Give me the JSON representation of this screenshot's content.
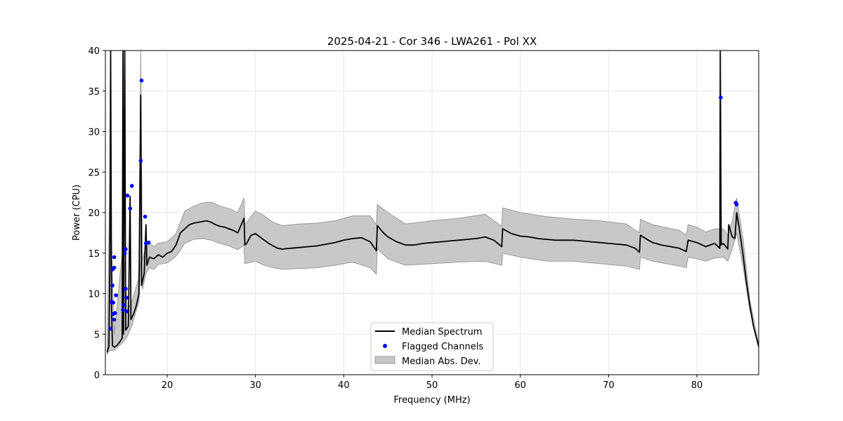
{
  "chart_data": {
    "type": "line",
    "title": "2025-04-21 - Cor 346 - LWA261 - Pol XX",
    "xlabel": "Frequency (MHz)",
    "ylabel": "Power (CPU)",
    "xlim": [
      13,
      87
    ],
    "ylim": [
      0,
      40
    ],
    "xticks": [
      20,
      30,
      40,
      50,
      60,
      70,
      80
    ],
    "yticks": [
      0,
      5,
      10,
      15,
      20,
      25,
      30,
      35,
      40
    ],
    "grid": true,
    "legend_position": "bottom-center",
    "colors": {
      "median": "#000000",
      "flagged": "#0000ff",
      "band_fill": "#c8c8c8",
      "band_edge": "#9a9a9a",
      "grid": "#e6e6e6"
    },
    "series": [
      {
        "name": "Median Spectrum",
        "style": "line",
        "points": [
          [
            13.2,
            2.8
          ],
          [
            13.4,
            3.5
          ],
          [
            13.5,
            13.0
          ],
          [
            13.6,
            40.0
          ],
          [
            13.7,
            8.0
          ],
          [
            13.8,
            3.6
          ],
          [
            14.0,
            3.4
          ],
          [
            14.3,
            3.6
          ],
          [
            14.6,
            4.0
          ],
          [
            14.9,
            4.5
          ],
          [
            15.0,
            40.0
          ],
          [
            15.05,
            5.0
          ],
          [
            15.2,
            40.0
          ],
          [
            15.3,
            5.5
          ],
          [
            15.6,
            6.0
          ],
          [
            15.8,
            22.0
          ],
          [
            15.9,
            6.8
          ],
          [
            16.2,
            7.5
          ],
          [
            16.5,
            8.5
          ],
          [
            16.8,
            10.0
          ],
          [
            17.0,
            34.5
          ],
          [
            17.1,
            11.0
          ],
          [
            17.4,
            12.5
          ],
          [
            17.6,
            18.5
          ],
          [
            17.7,
            13.5
          ],
          [
            18.0,
            14.5
          ],
          [
            18.5,
            14.3
          ],
          [
            19.0,
            14.8
          ],
          [
            19.5,
            14.5
          ],
          [
            20.0,
            15.0
          ],
          [
            20.5,
            15.2
          ],
          [
            21.0,
            16.0
          ],
          [
            21.5,
            17.5
          ],
          [
            22.0,
            18.0
          ],
          [
            22.5,
            18.5
          ],
          [
            23.0,
            18.7
          ],
          [
            23.5,
            18.8
          ],
          [
            24.0,
            18.9
          ],
          [
            24.5,
            19.0
          ],
          [
            25.0,
            18.8
          ],
          [
            25.5,
            18.5
          ],
          [
            26.0,
            18.3
          ],
          [
            26.5,
            18.2
          ],
          [
            27.0,
            18.0
          ],
          [
            27.5,
            17.8
          ],
          [
            28.0,
            17.5
          ],
          [
            28.7,
            19.3
          ],
          [
            28.8,
            16.0
          ],
          [
            29.0,
            16.2
          ],
          [
            29.5,
            17.2
          ],
          [
            30.0,
            17.4
          ],
          [
            30.5,
            17.0
          ],
          [
            31.0,
            16.6
          ],
          [
            31.5,
            16.2
          ],
          [
            32.0,
            15.9
          ],
          [
            32.5,
            15.6
          ],
          [
            33.0,
            15.5
          ],
          [
            34.0,
            15.6
          ],
          [
            35.0,
            15.7
          ],
          [
            36.0,
            15.8
          ],
          [
            37.0,
            15.9
          ],
          [
            38.0,
            16.1
          ],
          [
            39.0,
            16.3
          ],
          [
            40.0,
            16.6
          ],
          [
            41.0,
            16.8
          ],
          [
            42.0,
            16.9
          ],
          [
            43.0,
            16.4
          ],
          [
            43.7,
            15.3
          ],
          [
            43.8,
            18.4
          ],
          [
            44.5,
            17.5
          ],
          [
            45.0,
            17.0
          ],
          [
            46.0,
            16.4
          ],
          [
            47.0,
            16.0
          ],
          [
            48.0,
            16.0
          ],
          [
            49.0,
            16.2
          ],
          [
            50.0,
            16.3
          ],
          [
            51.0,
            16.4
          ],
          [
            52.0,
            16.5
          ],
          [
            53.0,
            16.6
          ],
          [
            54.0,
            16.7
          ],
          [
            55.0,
            16.8
          ],
          [
            56.0,
            17.0
          ],
          [
            57.0,
            16.6
          ],
          [
            57.9,
            15.8
          ],
          [
            58.0,
            18.0
          ],
          [
            59.0,
            17.4
          ],
          [
            60.0,
            17.1
          ],
          [
            61.0,
            17.0
          ],
          [
            62.0,
            16.8
          ],
          [
            63.0,
            16.7
          ],
          [
            64.0,
            16.6
          ],
          [
            65.0,
            16.6
          ],
          [
            66.0,
            16.6
          ],
          [
            67.0,
            16.5
          ],
          [
            68.0,
            16.4
          ],
          [
            69.0,
            16.3
          ],
          [
            70.0,
            16.2
          ],
          [
            71.0,
            16.1
          ],
          [
            72.0,
            16.0
          ],
          [
            73.0,
            15.6
          ],
          [
            73.5,
            15.1
          ],
          [
            73.6,
            17.2
          ],
          [
            74.5,
            16.6
          ],
          [
            75.0,
            16.3
          ],
          [
            76.0,
            16.0
          ],
          [
            77.0,
            15.8
          ],
          [
            78.0,
            15.6
          ],
          [
            78.8,
            15.2
          ],
          [
            79.0,
            16.6
          ],
          [
            80.0,
            16.3
          ],
          [
            81.0,
            15.8
          ],
          [
            82.0,
            16.2
          ],
          [
            82.6,
            15.6
          ],
          [
            82.65,
            40.0
          ],
          [
            82.75,
            16.0
          ],
          [
            83.0,
            16.2
          ],
          [
            83.5,
            15.5
          ],
          [
            83.6,
            18.5
          ],
          [
            84.0,
            17.0
          ],
          [
            84.3,
            16.8
          ],
          [
            84.5,
            20.0
          ],
          [
            84.8,
            18.0
          ],
          [
            85.2,
            15.0
          ],
          [
            85.6,
            11.5
          ],
          [
            86.0,
            8.5
          ],
          [
            86.4,
            6.0
          ],
          [
            86.8,
            4.3
          ],
          [
            87.0,
            3.5
          ]
        ]
      },
      {
        "name": "Flagged Channels",
        "style": "scatter",
        "points": [
          [
            13.6,
            5.7
          ],
          [
            13.7,
            9.0
          ],
          [
            13.8,
            11.0
          ],
          [
            13.8,
            13.0
          ],
          [
            13.9,
            7.5
          ],
          [
            13.9,
            8.9
          ],
          [
            14.0,
            14.5
          ],
          [
            14.0,
            13.2
          ],
          [
            14.2,
            9.8
          ],
          [
            14.1,
            7.6
          ],
          [
            14.0,
            6.8
          ],
          [
            15.0,
            8.0
          ],
          [
            15.1,
            8.6
          ],
          [
            15.2,
            15.0
          ],
          [
            15.3,
            15.5
          ],
          [
            15.3,
            10.6
          ],
          [
            15.4,
            9.5
          ],
          [
            15.4,
            7.8
          ],
          [
            15.5,
            22.1
          ],
          [
            15.8,
            20.5
          ],
          [
            16.0,
            23.3
          ],
          [
            17.0,
            26.4
          ],
          [
            17.1,
            36.3
          ],
          [
            17.5,
            19.5
          ],
          [
            17.6,
            16.2
          ],
          [
            17.9,
            16.3
          ],
          [
            82.7,
            34.2
          ],
          [
            84.4,
            21.2
          ],
          [
            84.5,
            21.0
          ]
        ]
      },
      {
        "name": "Median Abs. Dev.",
        "style": "band",
        "points": [
          [
            13.2,
            2.5,
            3.2
          ],
          [
            13.5,
            3.0,
            23.5
          ],
          [
            14.0,
            3.0,
            5.0
          ],
          [
            15.0,
            4.0,
            16.0
          ],
          [
            15.5,
            4.8,
            8.0
          ],
          [
            16.0,
            6.0,
            9.0
          ],
          [
            16.8,
            9.0,
            12.0
          ],
          [
            17.0,
            14.0,
            40.0
          ],
          [
            17.2,
            10.5,
            14.0
          ],
          [
            17.6,
            12.5,
            16.0
          ],
          [
            18.0,
            13.2,
            16.2
          ],
          [
            18.5,
            13.0,
            15.8
          ],
          [
            19.0,
            13.6,
            16.2
          ],
          [
            20.0,
            13.8,
            16.4
          ],
          [
            21.0,
            14.6,
            17.4
          ],
          [
            22.0,
            16.2,
            20.2
          ],
          [
            23.0,
            16.7,
            20.8
          ],
          [
            24.0,
            16.8,
            21.2
          ],
          [
            25.0,
            16.6,
            21.3
          ],
          [
            26.0,
            16.2,
            20.8
          ],
          [
            27.0,
            15.9,
            20.5
          ],
          [
            28.0,
            15.4,
            20.0
          ],
          [
            28.7,
            16.0,
            21.8
          ],
          [
            28.8,
            13.7,
            18.5
          ],
          [
            30.0,
            14.0,
            20.2
          ],
          [
            31.0,
            13.5,
            19.6
          ],
          [
            32.0,
            13.2,
            18.8
          ],
          [
            33.0,
            13.0,
            18.4
          ],
          [
            35.0,
            13.1,
            18.6
          ],
          [
            37.0,
            13.2,
            18.7
          ],
          [
            39.0,
            13.5,
            19.0
          ],
          [
            41.0,
            13.9,
            19.6
          ],
          [
            43.0,
            13.2,
            19.6
          ],
          [
            43.7,
            12.4,
            18.5
          ],
          [
            43.8,
            15.6,
            21.0
          ],
          [
            45.0,
            14.3,
            20.0
          ],
          [
            47.0,
            13.5,
            18.6
          ],
          [
            50.0,
            13.7,
            19.0
          ],
          [
            53.0,
            13.9,
            19.3
          ],
          [
            56.0,
            14.0,
            19.8
          ],
          [
            57.9,
            13.5,
            18.3
          ],
          [
            58.0,
            15.0,
            20.6
          ],
          [
            60.0,
            14.5,
            20.0
          ],
          [
            63.0,
            14.0,
            19.5
          ],
          [
            66.0,
            14.0,
            19.2
          ],
          [
            69.0,
            13.7,
            19.0
          ],
          [
            72.0,
            13.4,
            18.6
          ],
          [
            73.5,
            13.0,
            17.5
          ],
          [
            73.6,
            14.5,
            19.2
          ],
          [
            75.0,
            14.0,
            18.5
          ],
          [
            78.0,
            13.4,
            17.8
          ],
          [
            78.8,
            13.2,
            17.2
          ],
          [
            79.0,
            14.5,
            18.5
          ],
          [
            80.0,
            14.3,
            18.2
          ],
          [
            81.0,
            14.0,
            17.6
          ],
          [
            82.0,
            14.4,
            18.0
          ],
          [
            83.0,
            14.5,
            18.0
          ],
          [
            83.5,
            14.0,
            17.2
          ],
          [
            84.0,
            15.5,
            19.0
          ],
          [
            84.5,
            17.5,
            21.8
          ],
          [
            85.2,
            13.5,
            17.0
          ],
          [
            86.0,
            8.0,
            9.2
          ],
          [
            87.0,
            3.3,
            3.7
          ]
        ]
      }
    ]
  }
}
